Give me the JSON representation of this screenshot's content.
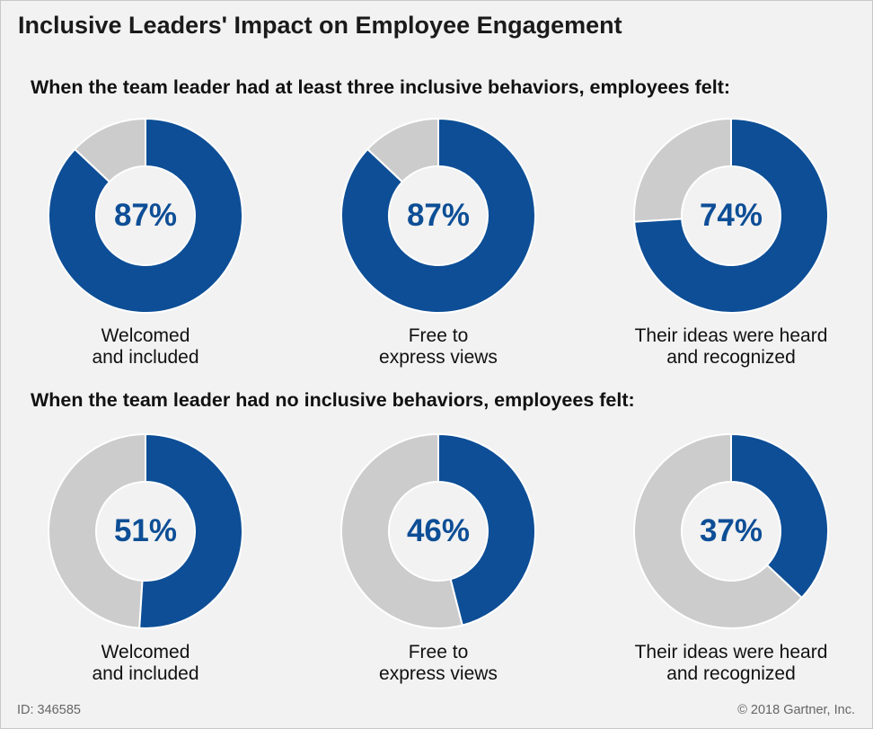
{
  "title": "Inclusive Leaders' Impact on Employee Engagement",
  "colors": {
    "filled": "#0d4e96",
    "remainder": "#cccccc",
    "background": "#f2f2f2",
    "value_text": "#0d4e96"
  },
  "chart_data": {
    "type": "pie",
    "variant": "donut",
    "groups": [
      {
        "subtitle": "When the team leader had at least three inclusive behaviors, employees felt:",
        "items": [
          {
            "value": 87,
            "value_label": "87%",
            "label_line1": "Welcomed",
            "label_line2": "and included"
          },
          {
            "value": 87,
            "value_label": "87%",
            "label_line1": "Free to",
            "label_line2": "express views"
          },
          {
            "value": 74,
            "value_label": "74%",
            "label_line1": "Their ideas were heard",
            "label_line2": "and recognized"
          }
        ]
      },
      {
        "subtitle": "When the team leader had no inclusive behaviors, employees felt:",
        "items": [
          {
            "value": 51,
            "value_label": "51%",
            "label_line1": "Welcomed",
            "label_line2": "and included"
          },
          {
            "value": 46,
            "value_label": "46%",
            "label_line1": "Free to",
            "label_line2": "express views"
          },
          {
            "value": 37,
            "value_label": "37%",
            "label_line1": "Their ideas were heard",
            "label_line2": "and recognized"
          }
        ]
      }
    ]
  },
  "footer": {
    "id": "ID: 346585",
    "copyright": "© 2018 Gartner, Inc."
  }
}
